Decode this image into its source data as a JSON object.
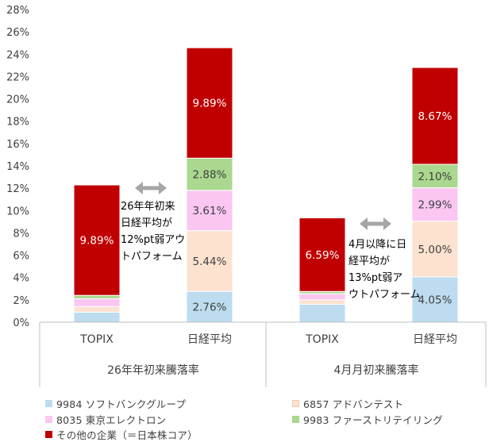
{
  "chart_data": {
    "type": "bar",
    "stacked": true,
    "y_axis": {
      "min": 0,
      "max": 28,
      "step": 2,
      "tick_labels": [
        "0%",
        "2%",
        "4%",
        "6%",
        "8%",
        "10%",
        "12%",
        "14%",
        "16%",
        "18%",
        "20%",
        "22%",
        "24%",
        "26%",
        "28%"
      ]
    },
    "grid": false,
    "groups": [
      {
        "label": "26年年初来騰落率",
        "categories": [
          "TOPIX",
          "日経平均"
        ]
      },
      {
        "label": "4月月初来騰落率",
        "categories": [
          "TOPIX",
          "日経平均"
        ]
      }
    ],
    "categories": [
      "TOPIX",
      "日経平均",
      "TOPIX",
      "日経平均"
    ],
    "series": [
      {
        "name": "9984 ソフトバンクグループ",
        "color": "#bddcf0",
        "values": [
          0.9,
          2.76,
          1.6,
          4.05
        ]
      },
      {
        "name": "6857 アドバンテスト",
        "color": "#fde2d0",
        "values": [
          0.5,
          5.44,
          0.4,
          5.0
        ]
      },
      {
        "name": "8035 東京エレクトロン",
        "color": "#fbc6f2",
        "values": [
          0.7,
          3.61,
          0.55,
          2.99
        ]
      },
      {
        "name": "9983 ファーストリテイリング",
        "color": "#a9d88e",
        "values": [
          0.3,
          2.88,
          0.2,
          2.1
        ]
      },
      {
        "name": "その他の企業（＝日本株コア）",
        "color": "#c00000",
        "values": [
          9.89,
          9.89,
          6.59,
          8.67
        ]
      }
    ],
    "data_labels": [
      {
        "bar": 0,
        "series": 4,
        "text": "9.89%"
      },
      {
        "bar": 1,
        "series": 0,
        "text": "2.76%"
      },
      {
        "bar": 1,
        "series": 1,
        "text": "5.44%"
      },
      {
        "bar": 1,
        "series": 2,
        "text": "3.61%"
      },
      {
        "bar": 1,
        "series": 3,
        "text": "2.88%"
      },
      {
        "bar": 1,
        "series": 4,
        "text": "9.89%"
      },
      {
        "bar": 2,
        "series": 4,
        "text": "6.59%"
      },
      {
        "bar": 3,
        "series": 0,
        "text": "4.05%"
      },
      {
        "bar": 3,
        "series": 1,
        "text": "5.00%"
      },
      {
        "bar": 3,
        "series": 2,
        "text": "2.99%"
      },
      {
        "bar": 3,
        "series": 3,
        "text": "2.10%"
      },
      {
        "bar": 3,
        "series": 4,
        "text": "8.67%"
      }
    ],
    "annotations": [
      {
        "text": "26年年初来\n日経平均が\n12%pt弱アウ\nトパフォーム"
      },
      {
        "text": "4月以降に日\n経平均が\n13%pt弱ア\nウトパフォーム"
      }
    ],
    "legend_position": "bottom"
  }
}
